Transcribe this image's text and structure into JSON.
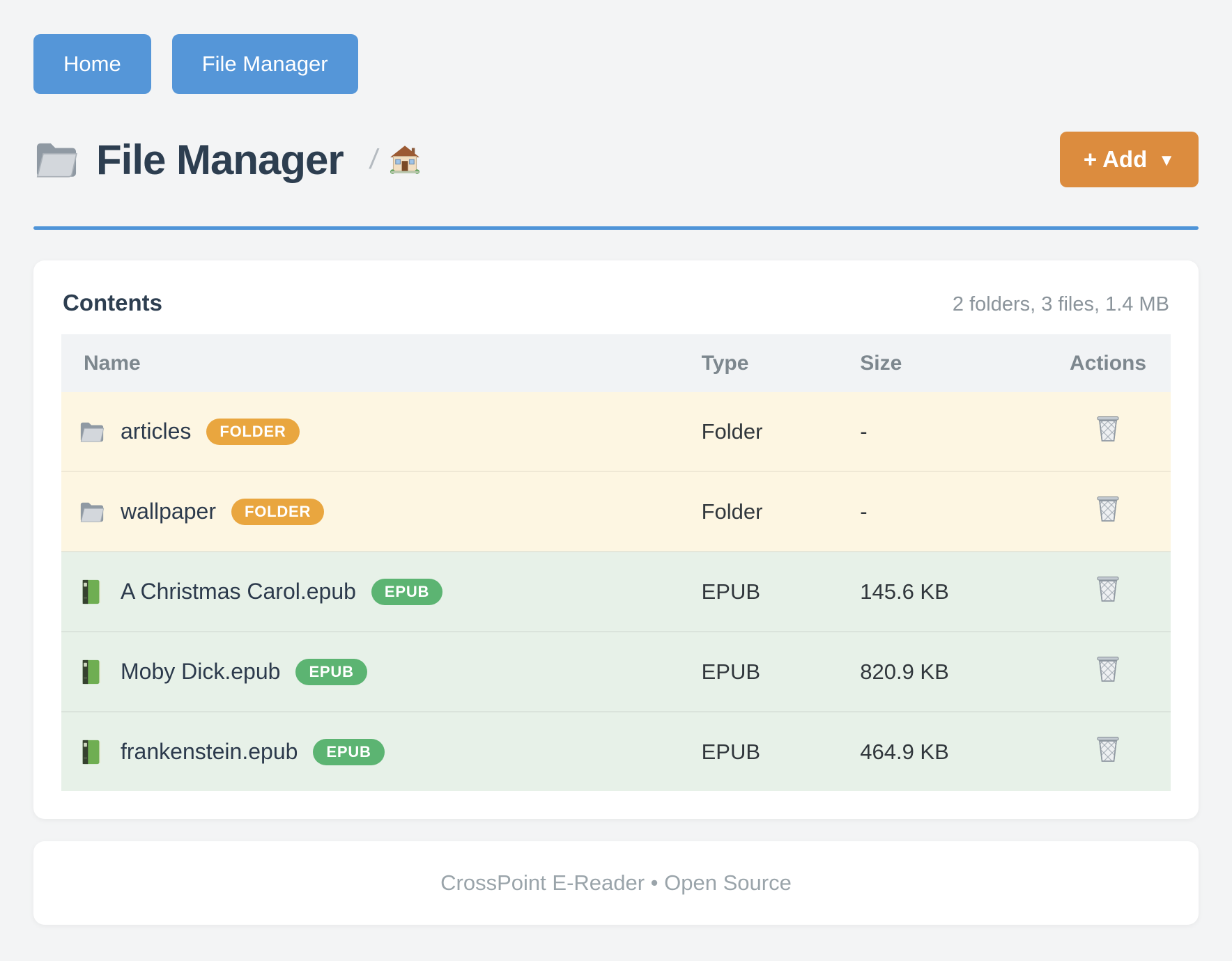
{
  "nav": {
    "buttons": [
      {
        "label": "Home"
      },
      {
        "label": "File Manager"
      }
    ]
  },
  "header": {
    "icon": "open-folder-icon",
    "title": "File Manager",
    "breadcrumb": {
      "separator": "/",
      "home_icon": "house-icon"
    },
    "add_button": {
      "label": "+ Add",
      "caret": "▼"
    }
  },
  "contents_card": {
    "title": "Contents",
    "summary": "2 folders, 3 files, 1.4 MB",
    "table": {
      "columns": [
        "Name",
        "Type",
        "Size",
        "Actions"
      ],
      "rows": [
        {
          "icon": "folder-icon",
          "name": "articles",
          "badge": "FOLDER",
          "kind": "folder",
          "type": "Folder",
          "size": "-"
        },
        {
          "icon": "folder-icon",
          "name": "wallpaper",
          "badge": "FOLDER",
          "kind": "folder",
          "type": "Folder",
          "size": "-"
        },
        {
          "icon": "green-book-icon",
          "name": "A Christmas Carol.epub",
          "badge": "EPUB",
          "kind": "file",
          "type": "EPUB",
          "size": "145.6 KB"
        },
        {
          "icon": "green-book-icon",
          "name": "Moby Dick.epub",
          "badge": "EPUB",
          "kind": "file",
          "type": "EPUB",
          "size": "820.9 KB"
        },
        {
          "icon": "green-book-icon",
          "name": "frankenstein.epub",
          "badge": "EPUB",
          "kind": "file",
          "type": "EPUB",
          "size": "464.9 KB"
        }
      ],
      "action_icon": "trash-icon"
    }
  },
  "footer": {
    "text": "CrossPoint E-Reader • Open Source"
  },
  "colors": {
    "page_background": "#f3f4f5",
    "primary_blue": "#5596d8",
    "divider_blue": "#4f94d8",
    "accent_orange": "#dc8c3e",
    "badge_orange": "#e9a63f",
    "badge_green": "#5cb472",
    "folder_row_background": "#fdf6e2",
    "file_row_background": "#e7f1e8",
    "title_text": "#2d3e50"
  }
}
